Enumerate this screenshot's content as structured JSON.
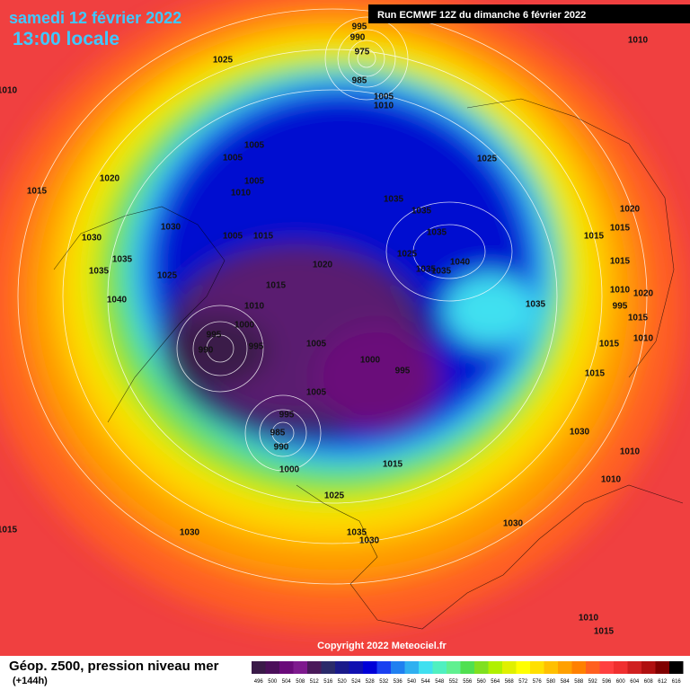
{
  "header": {
    "date": "samedi 12 février 2022",
    "time": "13:00 locale",
    "run": "Run ECMWF 12Z du dimanche 6 février 2022"
  },
  "copyright": "Copyright 2022 Meteociel.fr",
  "legend": {
    "title": "Géop. z500, pression niveau mer",
    "subtitle": "(+144h)",
    "labels": [
      496,
      500,
      504,
      508,
      512,
      516,
      520,
      524,
      528,
      532,
      536,
      540,
      544,
      548,
      552,
      556,
      560,
      564,
      568,
      572,
      576,
      580,
      584,
      588,
      592,
      596,
      600,
      604,
      608,
      612,
      616
    ],
    "colors": [
      "#3a1a48",
      "#4b0f5a",
      "#6a0a7a",
      "#7e1a8e",
      "#4a1a5a",
      "#2a2a6a",
      "#1a1a8a",
      "#1010b0",
      "#0000d8",
      "#1a40f0",
      "#2080f0",
      "#30b0f0",
      "#40e0f0",
      "#50f0c0",
      "#60f090",
      "#50e050",
      "#80e020",
      "#b0f000",
      "#e0f000",
      "#ffff00",
      "#ffe000",
      "#ffc000",
      "#ffa000",
      "#ff8000",
      "#ff6020",
      "#ff4040",
      "#f03030",
      "#d02020",
      "#b01010",
      "#800000",
      "#000000"
    ]
  },
  "isobar_labels": [
    "995",
    "990",
    "975",
    "985",
    "1010",
    "1025",
    "1010",
    "1005",
    "1010",
    "1005",
    "1005",
    "1005",
    "1025",
    "1015",
    "1020",
    "1010",
    "1035",
    "1035",
    "1020",
    "1030",
    "1005",
    "1015",
    "1035",
    "1015",
    "1015",
    "1030",
    "1035",
    "1025",
    "1020",
    "1040",
    "1035",
    "1025",
    "1035",
    "1035",
    "1015",
    "1015",
    "1040",
    "1010",
    "1020",
    "1010",
    "1035",
    "995",
    "1000",
    "1015",
    "995",
    "1005",
    "995",
    "990",
    "1015",
    "1010",
    "1000",
    "995",
    "1015",
    "1005",
    "995",
    "1030",
    "985",
    "990",
    "1010",
    "1015",
    "1000",
    "1010",
    "1025",
    "1030",
    "1030",
    "1015",
    "1035",
    "1030",
    "1010",
    "1015"
  ]
}
